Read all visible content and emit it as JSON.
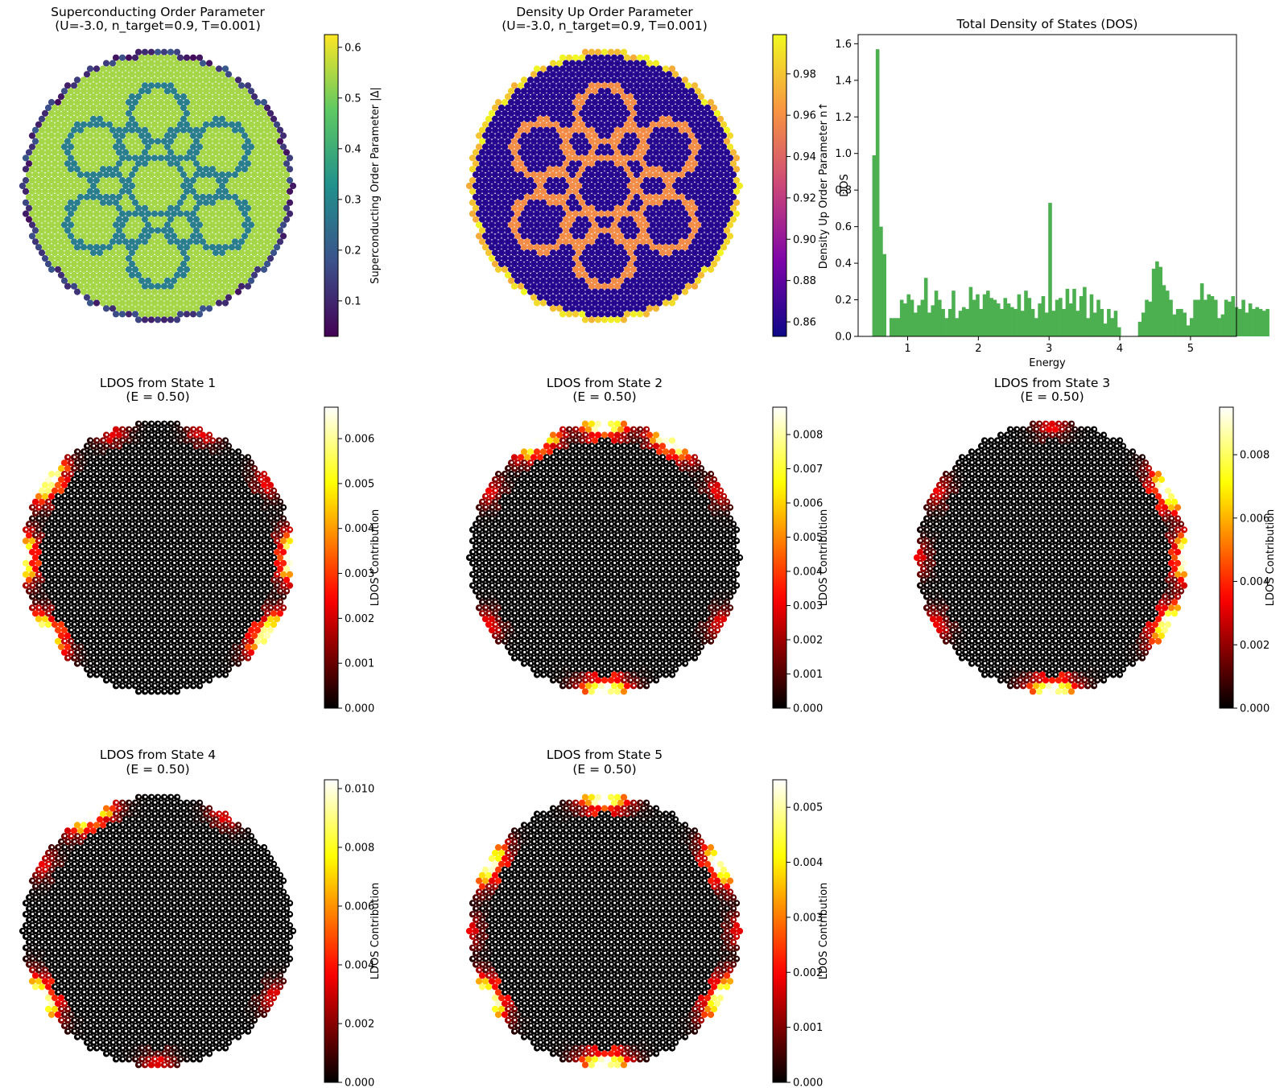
{
  "figure": {
    "panels": [
      {
        "kind": "lattice",
        "title_lines": [
          "Superconducting Order Parameter",
          "(U=-3.0, n_target=0.9, T=0.001)"
        ],
        "cmap": "viridis",
        "pattern": "sc",
        "cbar_label": "Superconducting Order Parameter |Δ|",
        "vmin": 0.03,
        "vmax": 0.625,
        "ticks": [
          0.1,
          0.2,
          0.3,
          0.4,
          0.5,
          0.6
        ],
        "tick_labels": [
          "0.1",
          "0.2",
          "0.3",
          "0.4",
          "0.5",
          "0.6"
        ]
      },
      {
        "kind": "lattice",
        "title_lines": [
          "Density Up Order Parameter",
          "(U=-3.0, n_target=0.9, T=0.001)"
        ],
        "cmap": "plasma",
        "pattern": "density",
        "cbar_label": "Density Up Order Parameter n↑",
        "vmin": 0.853,
        "vmax": 0.999,
        "ticks": [
          0.86,
          0.88,
          0.9,
          0.92,
          0.94,
          0.96,
          0.98
        ],
        "tick_labels": [
          "0.86",
          "0.88",
          "0.90",
          "0.92",
          "0.94",
          "0.96",
          "0.98"
        ]
      },
      {
        "kind": "dos"
      },
      {
        "kind": "lattice",
        "title_lines": [
          "LDOS from State 1",
          "(E = 0.50)"
        ],
        "cmap": "hot",
        "pattern": "ldos1",
        "cbar_label": "LDOS Contribution",
        "vmin": 0.0,
        "vmax": 0.0067,
        "ticks": [
          0,
          0.001,
          0.002,
          0.003,
          0.004,
          0.005,
          0.006
        ],
        "tick_labels": [
          "0.000",
          "0.001",
          "0.002",
          "0.003",
          "0.004",
          "0.005",
          "0.006"
        ]
      },
      {
        "kind": "lattice",
        "title_lines": [
          "LDOS from State 2",
          "(E = 0.50)"
        ],
        "cmap": "hot",
        "pattern": "ldos2",
        "cbar_label": "LDOS Contribution",
        "vmin": 0.0,
        "vmax": 0.0088,
        "ticks": [
          0,
          0.001,
          0.002,
          0.003,
          0.004,
          0.005,
          0.006,
          0.007,
          0.008
        ],
        "tick_labels": [
          "0.000",
          "0.001",
          "0.002",
          "0.003",
          "0.004",
          "0.005",
          "0.006",
          "0.007",
          "0.008"
        ]
      },
      {
        "kind": "lattice",
        "title_lines": [
          "LDOS from State 3",
          "(E = 0.50)"
        ],
        "cmap": "hot",
        "pattern": "ldos3",
        "cbar_label": "LDOS Contribution",
        "vmin": 0.0,
        "vmax": 0.0095,
        "ticks": [
          0,
          0.002,
          0.004,
          0.006,
          0.008
        ],
        "tick_labels": [
          "0.000",
          "0.002",
          "0.004",
          "0.006",
          "0.008"
        ]
      },
      {
        "kind": "lattice",
        "title_lines": [
          "LDOS from State 4",
          "(E = 0.50)"
        ],
        "cmap": "hot",
        "pattern": "ldos4",
        "cbar_label": "LDOS Contribution",
        "vmin": 0.0,
        "vmax": 0.0103,
        "ticks": [
          0,
          0.002,
          0.004,
          0.006,
          0.008,
          0.01
        ],
        "tick_labels": [
          "0.000",
          "0.002",
          "0.004",
          "0.006",
          "0.008",
          "0.010"
        ]
      },
      {
        "kind": "lattice",
        "title_lines": [
          "LDOS from State 5",
          "(E = 0.50)"
        ],
        "cmap": "hot",
        "pattern": "ldos5",
        "cbar_label": "LDOS Contribution",
        "vmin": 0.0,
        "vmax": 0.0055,
        "ticks": [
          0,
          0.001,
          0.002,
          0.003,
          0.004,
          0.005
        ],
        "tick_labels": [
          "0.000",
          "0.001",
          "0.002",
          "0.003",
          "0.004",
          "0.005"
        ]
      }
    ]
  },
  "chart_data": {
    "type": "bar",
    "title": "Total Density of States (DOS)",
    "xlabel": "Energy",
    "ylabel": "DOS",
    "xlim": [
      0.3,
      5.65
    ],
    "ylim": [
      0,
      1.65
    ],
    "xticks": [
      1,
      2,
      3,
      4,
      5
    ],
    "yticks": [
      0.0,
      0.2,
      0.4,
      0.6,
      0.8,
      1.0,
      1.2,
      1.4,
      1.6
    ],
    "ytick_labels": [
      "0.0",
      "0.2",
      "0.4",
      "0.6",
      "0.8",
      "1.0",
      "1.2",
      "1.4",
      "1.6"
    ],
    "bar_color": "#4caf50",
    "bin_start": 0.5,
    "bin_width": 0.0488,
    "values": [
      0.99,
      1.57,
      0.6,
      0.45,
      0.0,
      0.1,
      0.1,
      0.1,
      0.2,
      0.18,
      0.23,
      0.2,
      0.13,
      0.17,
      0.2,
      0.32,
      0.13,
      0.17,
      0.25,
      0.2,
      0.15,
      0.1,
      0.15,
      0.25,
      0.1,
      0.14,
      0.16,
      0.15,
      0.27,
      0.2,
      0.23,
      0.15,
      0.23,
      0.25,
      0.21,
      0.2,
      0.18,
      0.15,
      0.21,
      0.18,
      0.16,
      0.15,
      0.23,
      0.14,
      0.25,
      0.21,
      0.15,
      0.1,
      0.18,
      0.22,
      0.13,
      0.73,
      0.14,
      0.2,
      0.21,
      0.15,
      0.26,
      0.18,
      0.26,
      0.14,
      0.22,
      0.27,
      0.1,
      0.23,
      0.13,
      0.2,
      0.15,
      0.07,
      0.15,
      0.1,
      0.14,
      0.05,
      0.0,
      0.0,
      0.0,
      0.0,
      0.0,
      0.08,
      0.13,
      0.2,
      0.19,
      0.37,
      0.41,
      0.38,
      0.28,
      0.25,
      0.2,
      0.12,
      0.15,
      0.15,
      0.13,
      0.06,
      0.1,
      0.2,
      0.2,
      0.29,
      0.2,
      0.23,
      0.22,
      0.2,
      0.1,
      0.12,
      0.2,
      0.19,
      0.22,
      0.16,
      0.15,
      0.2,
      0.13,
      0.18,
      0.15,
      0.16,
      0.15,
      0.14,
      0.15
    ]
  }
}
